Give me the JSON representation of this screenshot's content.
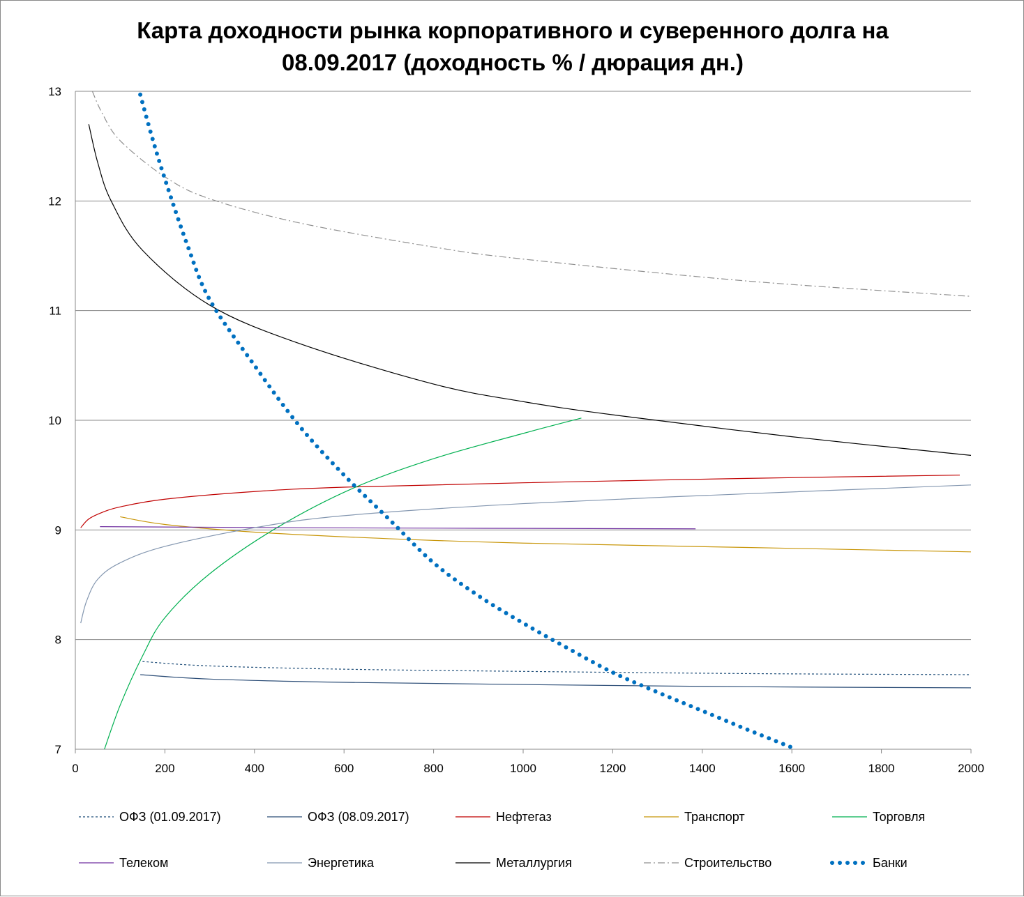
{
  "chart_data": {
    "type": "line",
    "title_line1": "Карта доходности рынка корпоративного и суверенного долга на",
    "title_line2": "08.09.2017 (доходность % / дюрация дн.)",
    "xlabel": "",
    "ylabel": "",
    "xlim": [
      0,
      2000
    ],
    "ylim": [
      7,
      13
    ],
    "xticks": [
      0,
      200,
      400,
      600,
      800,
      1000,
      1200,
      1400,
      1600,
      1800,
      2000
    ],
    "yticks": [
      7,
      8,
      9,
      10,
      11,
      12,
      13
    ],
    "grid": "horizontal",
    "legend_position": "bottom",
    "series": [
      {
        "name": "ОФЗ (01.09.2017)",
        "color": "#1f4e79",
        "style": "dotted",
        "points": [
          [
            150,
            7.8
          ],
          [
            300,
            7.76
          ],
          [
            600,
            7.73
          ],
          [
            1000,
            7.71
          ],
          [
            1500,
            7.69
          ],
          [
            2000,
            7.68
          ]
        ]
      },
      {
        "name": "ОФЗ (08.09.2017)",
        "color": "#2e4f78",
        "style": "solid",
        "points": [
          [
            145,
            7.68
          ],
          [
            300,
            7.64
          ],
          [
            600,
            7.61
          ],
          [
            1000,
            7.59
          ],
          [
            1500,
            7.57
          ],
          [
            2000,
            7.56
          ]
        ]
      },
      {
        "name": "Нефтегаз",
        "color": "#c00000",
        "style": "solid",
        "points": [
          [
            12,
            9.02
          ],
          [
            30,
            9.1
          ],
          [
            60,
            9.16
          ],
          [
            100,
            9.21
          ],
          [
            200,
            9.28
          ],
          [
            400,
            9.35
          ],
          [
            600,
            9.39
          ],
          [
            1000,
            9.43
          ],
          [
            1500,
            9.47
          ],
          [
            1975,
            9.5
          ]
        ]
      },
      {
        "name": "Транспорт",
        "color": "#c8960a",
        "style": "solid",
        "points": [
          [
            100,
            9.12
          ],
          [
            200,
            9.05
          ],
          [
            400,
            8.98
          ],
          [
            700,
            8.92
          ],
          [
            1000,
            8.88
          ],
          [
            1500,
            8.84
          ],
          [
            2000,
            8.8
          ]
        ]
      },
      {
        "name": "Торговля",
        "color": "#00b050",
        "style": "solid",
        "points": [
          [
            65,
            7.0
          ],
          [
            100,
            7.4
          ],
          [
            150,
            7.85
          ],
          [
            200,
            8.2
          ],
          [
            300,
            8.6
          ],
          [
            450,
            9.02
          ],
          [
            620,
            9.38
          ],
          [
            800,
            9.65
          ],
          [
            1000,
            9.88
          ],
          [
            1130,
            10.02
          ]
        ]
      },
      {
        "name": "Телеком",
        "color": "#7030a0",
        "style": "solid",
        "points": [
          [
            55,
            9.03
          ],
          [
            500,
            9.02
          ],
          [
            1385,
            9.01
          ]
        ]
      },
      {
        "name": "Энергетика",
        "color": "#8497b0",
        "style": "solid",
        "points": [
          [
            12,
            8.15
          ],
          [
            25,
            8.35
          ],
          [
            50,
            8.55
          ],
          [
            100,
            8.7
          ],
          [
            200,
            8.85
          ],
          [
            400,
            9.02
          ],
          [
            600,
            9.13
          ],
          [
            1000,
            9.24
          ],
          [
            1500,
            9.33
          ],
          [
            2000,
            9.41
          ]
        ]
      },
      {
        "name": "Металлургия",
        "color": "#000000",
        "style": "solid",
        "points": [
          [
            30,
            12.7
          ],
          [
            50,
            12.35
          ],
          [
            80,
            12.0
          ],
          [
            150,
            11.55
          ],
          [
            300,
            11.05
          ],
          [
            500,
            10.7
          ],
          [
            800,
            10.33
          ],
          [
            1000,
            10.17
          ],
          [
            1200,
            10.05
          ],
          [
            1600,
            9.85
          ],
          [
            2000,
            9.68
          ]
        ]
      },
      {
        "name": "Строительство",
        "color": "#909090",
        "style": "dashdot",
        "points": [
          [
            38,
            13.0
          ],
          [
            60,
            12.8
          ],
          [
            100,
            12.55
          ],
          [
            200,
            12.22
          ],
          [
            300,
            12.02
          ],
          [
            500,
            11.8
          ],
          [
            800,
            11.58
          ],
          [
            1000,
            11.47
          ],
          [
            1500,
            11.27
          ],
          [
            2000,
            11.13
          ]
        ]
      },
      {
        "name": "Банки",
        "color": "#0070c0",
        "style": "dots",
        "points": [
          [
            145,
            12.97
          ],
          [
            170,
            12.6
          ],
          [
            200,
            12.2
          ],
          [
            250,
            11.6
          ],
          [
            300,
            11.1
          ],
          [
            400,
            10.5
          ],
          [
            500,
            9.95
          ],
          [
            600,
            9.5
          ],
          [
            700,
            9.1
          ],
          [
            800,
            8.7
          ],
          [
            900,
            8.4
          ],
          [
            1000,
            8.15
          ],
          [
            1100,
            7.92
          ],
          [
            1200,
            7.7
          ],
          [
            1300,
            7.52
          ],
          [
            1400,
            7.35
          ],
          [
            1500,
            7.18
          ],
          [
            1610,
            7.0
          ]
        ]
      }
    ]
  }
}
